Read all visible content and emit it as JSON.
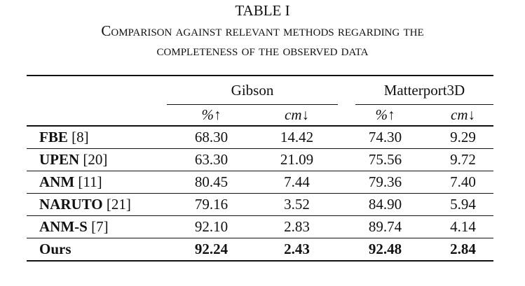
{
  "title": "TABLE I",
  "caption": "Comparison against relevant methods regarding the completeness of the observed data",
  "table": {
    "groups": [
      "Gibson",
      "Matterport3D"
    ],
    "subheaders": [
      "%↑",
      "cm↓",
      "%↑",
      "cm↓"
    ],
    "rows": [
      {
        "method": "FBE",
        "cite": "[8]",
        "values": [
          "68.30",
          "14.42",
          "74.30",
          "9.29"
        ]
      },
      {
        "method": "UPEN",
        "cite": "[20]",
        "values": [
          "63.30",
          "21.09",
          "75.56",
          "9.72"
        ]
      },
      {
        "method": "ANM",
        "cite": "[11]",
        "values": [
          "80.45",
          "7.44",
          "79.36",
          "7.40"
        ]
      },
      {
        "method": "NARUTO",
        "cite": "[21]",
        "values": [
          "79.16",
          "3.52",
          "84.90",
          "5.94"
        ]
      },
      {
        "method": "ANM-S",
        "cite": "[7]",
        "values": [
          "92.10",
          "2.83",
          "89.74",
          "4.14"
        ]
      },
      {
        "method": "Ours",
        "values": [
          "92.24",
          "2.43",
          "92.48",
          "2.84"
        ]
      }
    ]
  }
}
